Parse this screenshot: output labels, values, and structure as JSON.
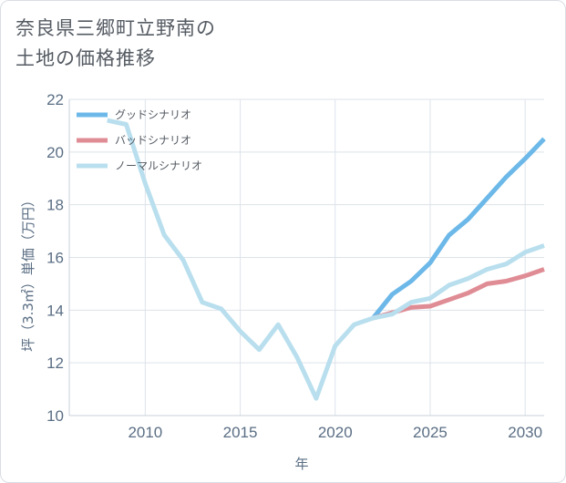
{
  "title_lines": [
    "奈良県三郷町立野南の",
    "土地の価格推移"
  ],
  "chart_data": {
    "type": "line",
    "xlabel": "年",
    "ylabel": "坪（3.3㎡）単価（万円）",
    "xlim": [
      2006,
      2031
    ],
    "ylim": [
      10,
      22
    ],
    "x_ticks": [
      2010,
      2015,
      2020,
      2025,
      2030
    ],
    "y_ticks": [
      10,
      12,
      14,
      16,
      18,
      20,
      22
    ],
    "legend_position": "top-left",
    "series": [
      {
        "name": "グッドシナリオ",
        "color": "#6cb8e8",
        "x": [
          2022,
          2023,
          2024,
          2025,
          2026,
          2027,
          2028,
          2029,
          2030,
          2031
        ],
        "values": [
          13.7,
          14.6,
          15.1,
          15.8,
          16.85,
          17.45,
          18.25,
          19.05,
          19.75,
          20.5
        ]
      },
      {
        "name": "バッドシナリオ",
        "color": "#df8c95",
        "x": [
          2022,
          2023,
          2024,
          2025,
          2026,
          2027,
          2028,
          2029,
          2030,
          2031
        ],
        "values": [
          13.7,
          13.9,
          14.1,
          14.15,
          14.4,
          14.65,
          15.0,
          15.1,
          15.3,
          15.55
        ]
      },
      {
        "name": "ノーマルシナリオ",
        "color": "#b9dfee",
        "x": [
          2008,
          2009,
          2010,
          2011,
          2012,
          2013,
          2014,
          2015,
          2016,
          2017,
          2018,
          2019,
          2020,
          2021,
          2022,
          2023,
          2024,
          2025,
          2026,
          2027,
          2028,
          2029,
          2030,
          2031
        ],
        "values": [
          21.2,
          21.05,
          18.8,
          16.85,
          15.9,
          14.3,
          14.05,
          13.2,
          12.5,
          13.45,
          12.2,
          10.65,
          12.65,
          13.45,
          13.7,
          13.85,
          14.3,
          14.45,
          14.95,
          15.2,
          15.55,
          15.75,
          16.2,
          16.45
        ]
      }
    ]
  }
}
